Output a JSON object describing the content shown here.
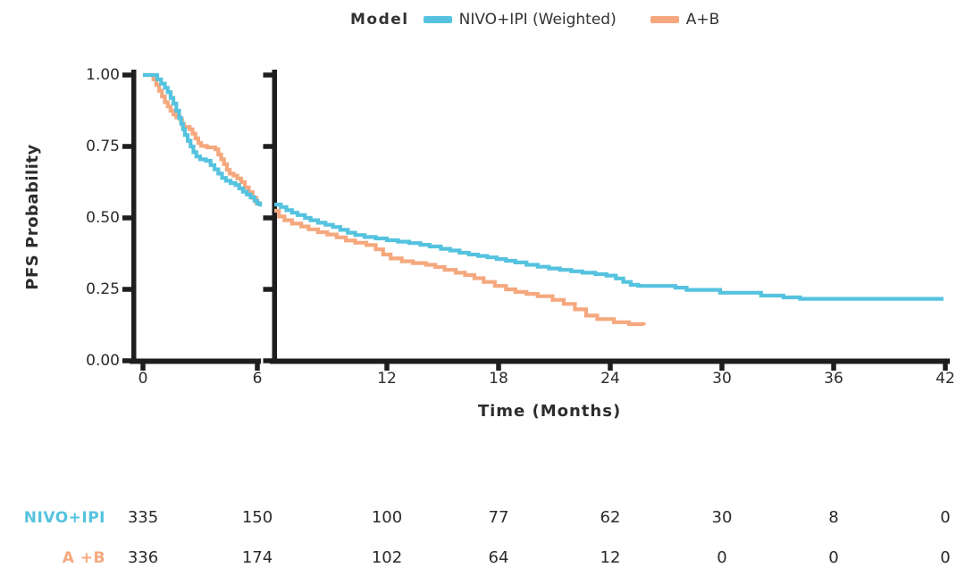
{
  "legend": {
    "title": "Model",
    "entries": [
      {
        "label": "NIVO+IPI (Weighted)",
        "color": "#55C3DF"
      },
      {
        "label": "A+B",
        "color": "#F5A87E"
      }
    ]
  },
  "y_axis": {
    "title": "PFS Probability",
    "ticks": [
      "1.00",
      "0.75",
      "0.50",
      "0.25",
      "0.00"
    ],
    "tick_values": [
      1.0,
      0.75,
      0.5,
      0.25,
      0.0
    ]
  },
  "x_axis": {
    "title": "Time (Months)",
    "panel1_ticks": [
      0,
      6
    ],
    "panel2_ticks": [
      12,
      18,
      24,
      30,
      36,
      42
    ]
  },
  "chart_data": {
    "type": "line",
    "subtype": "kaplan-meier-step",
    "title": "",
    "xlabel": "Time (Months)",
    "ylabel": "PFS Probability",
    "ylim": [
      0.0,
      1.0
    ],
    "xlim_panel1": [
      0,
      6
    ],
    "xlim_panel2": [
      6,
      42
    ],
    "axis_break_after_month": 6,
    "grid": false,
    "legend_position": "top",
    "series": [
      {
        "name": "A+B",
        "color": "#F5A87E",
        "panel1": [
          [
            0,
            1.0
          ],
          [
            0.4,
            1.0
          ],
          [
            0.55,
            0.985
          ],
          [
            0.7,
            0.965
          ],
          [
            0.85,
            0.945
          ],
          [
            1.0,
            0.925
          ],
          [
            1.15,
            0.905
          ],
          [
            1.3,
            0.89
          ],
          [
            1.45,
            0.875
          ],
          [
            1.6,
            0.862
          ],
          [
            1.75,
            0.852
          ],
          [
            1.95,
            0.845
          ],
          [
            2.05,
            0.828
          ],
          [
            2.15,
            0.818
          ],
          [
            2.45,
            0.81
          ],
          [
            2.6,
            0.795
          ],
          [
            2.75,
            0.778
          ],
          [
            2.9,
            0.762
          ],
          [
            3.05,
            0.752
          ],
          [
            3.35,
            0.747
          ],
          [
            3.8,
            0.74
          ],
          [
            3.95,
            0.722
          ],
          [
            4.1,
            0.705
          ],
          [
            4.25,
            0.688
          ],
          [
            4.4,
            0.668
          ],
          [
            4.55,
            0.655
          ],
          [
            4.75,
            0.648
          ],
          [
            4.95,
            0.638
          ],
          [
            5.15,
            0.625
          ],
          [
            5.35,
            0.607
          ],
          [
            5.55,
            0.59
          ],
          [
            5.75,
            0.57
          ],
          [
            5.95,
            0.552
          ],
          [
            6.1,
            0.542
          ]
        ],
        "panel2": [
          [
            5.95,
            0.525
          ],
          [
            6.2,
            0.505
          ],
          [
            6.5,
            0.492
          ],
          [
            6.9,
            0.48
          ],
          [
            7.4,
            0.47
          ],
          [
            7.8,
            0.46
          ],
          [
            8.3,
            0.45
          ],
          [
            8.8,
            0.442
          ],
          [
            9.3,
            0.432
          ],
          [
            9.8,
            0.421
          ],
          [
            10.3,
            0.413
          ],
          [
            10.9,
            0.405
          ],
          [
            11.4,
            0.39
          ],
          [
            11.8,
            0.372
          ],
          [
            12.2,
            0.358
          ],
          [
            12.8,
            0.348
          ],
          [
            13.4,
            0.342
          ],
          [
            14.1,
            0.336
          ],
          [
            14.6,
            0.328
          ],
          [
            15.1,
            0.318
          ],
          [
            15.7,
            0.308
          ],
          [
            16.2,
            0.3
          ],
          [
            16.7,
            0.289
          ],
          [
            17.2,
            0.276
          ],
          [
            17.8,
            0.262
          ],
          [
            18.4,
            0.25
          ],
          [
            18.9,
            0.241
          ],
          [
            19.5,
            0.234
          ],
          [
            20.1,
            0.226
          ],
          [
            20.9,
            0.213
          ],
          [
            21.5,
            0.199
          ],
          [
            22.1,
            0.18
          ],
          [
            22.7,
            0.158
          ],
          [
            23.3,
            0.146
          ],
          [
            24.2,
            0.135
          ],
          [
            25.0,
            0.128
          ],
          [
            25.8,
            0.124
          ]
        ]
      },
      {
        "name": "NIVO+IPI (Weighted)",
        "color": "#55C3DF",
        "panel1": [
          [
            0,
            1.0
          ],
          [
            0.55,
            1.0
          ],
          [
            0.75,
            0.985
          ],
          [
            0.95,
            0.97
          ],
          [
            1.15,
            0.955
          ],
          [
            1.3,
            0.94
          ],
          [
            1.45,
            0.92
          ],
          [
            1.6,
            0.9
          ],
          [
            1.75,
            0.875
          ],
          [
            1.9,
            0.85
          ],
          [
            2.0,
            0.83
          ],
          [
            2.1,
            0.81
          ],
          [
            2.2,
            0.79
          ],
          [
            2.35,
            0.77
          ],
          [
            2.5,
            0.75
          ],
          [
            2.65,
            0.73
          ],
          [
            2.8,
            0.715
          ],
          [
            3.0,
            0.705
          ],
          [
            3.3,
            0.7
          ],
          [
            3.55,
            0.685
          ],
          [
            3.75,
            0.67
          ],
          [
            3.95,
            0.655
          ],
          [
            4.15,
            0.64
          ],
          [
            4.35,
            0.63
          ],
          [
            4.6,
            0.622
          ],
          [
            4.85,
            0.615
          ],
          [
            5.05,
            0.603
          ],
          [
            5.25,
            0.592
          ],
          [
            5.45,
            0.582
          ],
          [
            5.65,
            0.572
          ],
          [
            5.85,
            0.56
          ],
          [
            6.0,
            0.55
          ],
          [
            6.15,
            0.54
          ]
        ],
        "panel2": [
          [
            5.95,
            0.547
          ],
          [
            6.3,
            0.538
          ],
          [
            6.6,
            0.527
          ],
          [
            6.9,
            0.518
          ],
          [
            7.2,
            0.51
          ],
          [
            7.6,
            0.5
          ],
          [
            7.9,
            0.492
          ],
          [
            8.3,
            0.483
          ],
          [
            8.7,
            0.476
          ],
          [
            9.1,
            0.468
          ],
          [
            9.5,
            0.458
          ],
          [
            9.9,
            0.448
          ],
          [
            10.3,
            0.44
          ],
          [
            10.8,
            0.433
          ],
          [
            11.4,
            0.428
          ],
          [
            12.0,
            0.422
          ],
          [
            12.6,
            0.417
          ],
          [
            13.2,
            0.412
          ],
          [
            13.8,
            0.406
          ],
          [
            14.3,
            0.4
          ],
          [
            14.9,
            0.392
          ],
          [
            15.4,
            0.386
          ],
          [
            15.9,
            0.378
          ],
          [
            16.4,
            0.372
          ],
          [
            16.9,
            0.367
          ],
          [
            17.4,
            0.362
          ],
          [
            17.9,
            0.356
          ],
          [
            18.4,
            0.35
          ],
          [
            18.9,
            0.344
          ],
          [
            19.5,
            0.336
          ],
          [
            20.1,
            0.329
          ],
          [
            20.7,
            0.323
          ],
          [
            21.3,
            0.318
          ],
          [
            21.9,
            0.313
          ],
          [
            22.5,
            0.308
          ],
          [
            23.2,
            0.303
          ],
          [
            23.8,
            0.298
          ],
          [
            24.3,
            0.288
          ],
          [
            24.7,
            0.276
          ],
          [
            25.1,
            0.266
          ],
          [
            25.5,
            0.262
          ],
          [
            27.5,
            0.256
          ],
          [
            28.1,
            0.248
          ],
          [
            29.9,
            0.238
          ],
          [
            32.1,
            0.228
          ],
          [
            33.3,
            0.222
          ],
          [
            34.2,
            0.217
          ],
          [
            41.9,
            0.217
          ]
        ]
      }
    ]
  },
  "risk_table": {
    "time_points": [
      0,
      6,
      12,
      18,
      24,
      30,
      36,
      42
    ],
    "rows": [
      {
        "label": "NIVO+IPI",
        "color": "#55C3DF",
        "values": [
          "335",
          "150",
          "100",
          "77",
          "62",
          "30",
          "8",
          "0"
        ]
      },
      {
        "label": "A +B",
        "color": "#F5A87E",
        "values": [
          "336",
          "174",
          "102",
          "64",
          "12",
          "0",
          "0",
          "0"
        ]
      }
    ]
  }
}
